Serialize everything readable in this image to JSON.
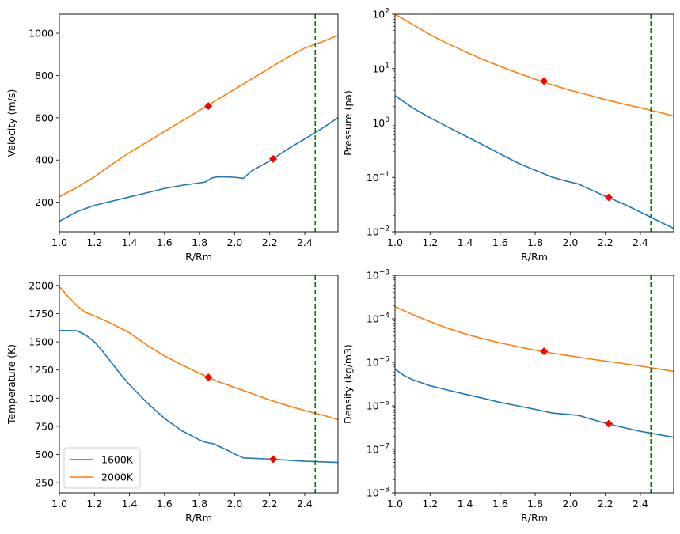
{
  "colors": {
    "series_1600": "#1f77b4",
    "series_2000": "#ff7f0e",
    "marker": "#ff0000",
    "vline": "#008000"
  },
  "legend": {
    "items": [
      {
        "label": "1600K",
        "color": "#1f77b4"
      },
      {
        "label": "2000K",
        "color": "#ff7f0e"
      }
    ],
    "location": "lower-left of temperature panel"
  },
  "chart_data": [
    {
      "type": "line",
      "panel": "top-left",
      "xlabel": "R/Rm",
      "ylabel": "Velocity (m/s)",
      "xlim": [
        1.0,
        2.59
      ],
      "ylim": [
        60,
        1090
      ],
      "yscale": "linear",
      "xticks": [
        1.0,
        1.2,
        1.4,
        1.6,
        1.8,
        2.0,
        2.2,
        2.4
      ],
      "xtick_labels": [
        "1.0",
        "1.2",
        "1.4",
        "1.6",
        "1.8",
        "2.0",
        "2.2",
        "2.4"
      ],
      "yticks": [
        200,
        400,
        600,
        800,
        1000
      ],
      "ytick_labels": [
        "200",
        "400",
        "600",
        "800",
        "1000"
      ],
      "vline": 2.46,
      "series": [
        {
          "name": "1600K",
          "x": [
            1.0,
            1.1,
            1.2,
            1.3,
            1.4,
            1.5,
            1.6,
            1.7,
            1.83,
            1.87,
            1.9,
            1.95,
            2.0,
            2.05,
            2.1,
            2.2,
            2.3,
            2.4,
            2.5,
            2.59
          ],
          "y": [
            110,
            155,
            185,
            205,
            225,
            245,
            265,
            280,
            295,
            315,
            320,
            320,
            318,
            313,
            350,
            395,
            450,
            500,
            550,
            600
          ]
        },
        {
          "name": "2000K",
          "x": [
            1.0,
            1.1,
            1.2,
            1.3,
            1.4,
            1.5,
            1.6,
            1.7,
            1.8,
            1.9,
            2.0,
            2.1,
            2.2,
            2.3,
            2.4,
            2.5,
            2.59
          ],
          "y": [
            225,
            270,
            320,
            380,
            435,
            485,
            535,
            585,
            635,
            685,
            735,
            785,
            835,
            885,
            930,
            960,
            990
          ]
        }
      ],
      "markers": [
        {
          "x": 1.85,
          "y": 655
        },
        {
          "x": 2.22,
          "y": 405
        }
      ]
    },
    {
      "type": "line",
      "panel": "top-right",
      "xlabel": "R/Rm",
      "ylabel": "Pressure (pa)",
      "xlim": [
        1.0,
        2.59
      ],
      "ylim": [
        0.01,
        100
      ],
      "yscale": "log",
      "xticks": [
        1.0,
        1.2,
        1.4,
        1.6,
        1.8,
        2.0,
        2.2,
        2.4
      ],
      "xtick_labels": [
        "1.0",
        "1.2",
        "1.4",
        "1.6",
        "1.8",
        "2.0",
        "2.2",
        "2.4"
      ],
      "yticks": [
        0.01,
        0.1,
        1,
        10,
        100
      ],
      "ytick_labels": [
        {
          "base": "10",
          "exp": "−2"
        },
        {
          "base": "10",
          "exp": "−1"
        },
        {
          "base": "10",
          "exp": "0"
        },
        {
          "base": "10",
          "exp": "1"
        },
        {
          "base": "10",
          "exp": "2"
        }
      ],
      "vline": 2.46,
      "series": [
        {
          "name": "1600K",
          "x": [
            1.0,
            1.1,
            1.2,
            1.3,
            1.4,
            1.5,
            1.6,
            1.7,
            1.8,
            1.9,
            2.0,
            2.05,
            2.1,
            2.2,
            2.3,
            2.4,
            2.5,
            2.59
          ],
          "y": [
            3.2,
            1.9,
            1.25,
            0.85,
            0.58,
            0.4,
            0.27,
            0.185,
            0.135,
            0.1,
            0.082,
            0.075,
            0.063,
            0.045,
            0.033,
            0.023,
            0.016,
            0.0115
          ]
        },
        {
          "name": "2000K",
          "x": [
            1.0,
            1.1,
            1.2,
            1.3,
            1.4,
            1.5,
            1.6,
            1.7,
            1.8,
            1.9,
            2.0,
            2.1,
            2.2,
            2.3,
            2.4,
            2.5,
            2.59
          ],
          "y": [
            100,
            65,
            42,
            29,
            20.5,
            14.8,
            11,
            8.3,
            6.4,
            5,
            4,
            3.3,
            2.7,
            2.25,
            1.9,
            1.6,
            1.35
          ]
        }
      ],
      "markers": [
        {
          "x": 1.85,
          "y": 5.9
        },
        {
          "x": 2.22,
          "y": 0.043
        }
      ]
    },
    {
      "type": "line",
      "panel": "bottom-left",
      "xlabel": "R/Rm",
      "ylabel": "Temperature (K)",
      "xlim": [
        1.0,
        2.59
      ],
      "ylim": [
        160,
        2090
      ],
      "yscale": "linear",
      "xticks": [
        1.0,
        1.2,
        1.4,
        1.6,
        1.8,
        2.0,
        2.2,
        2.4
      ],
      "xtick_labels": [
        "1.0",
        "1.2",
        "1.4",
        "1.6",
        "1.8",
        "2.0",
        "2.2",
        "2.4"
      ],
      "yticks": [
        250,
        500,
        750,
        1000,
        1250,
        1500,
        1750,
        2000
      ],
      "ytick_labels": [
        "250",
        "500",
        "750",
        "1000",
        "1250",
        "1500",
        "1750",
        "2000"
      ],
      "vline": 2.46,
      "series": [
        {
          "name": "1600K",
          "x": [
            1.0,
            1.05,
            1.1,
            1.15,
            1.2,
            1.25,
            1.3,
            1.35,
            1.4,
            1.5,
            1.6,
            1.7,
            1.8,
            1.83,
            1.88,
            1.9,
            1.95,
            2.0,
            2.05,
            2.2,
            2.3,
            2.4,
            2.5,
            2.59
          ],
          "y": [
            1600,
            1600,
            1598,
            1560,
            1500,
            1410,
            1310,
            1210,
            1120,
            960,
            820,
            710,
            630,
            610,
            595,
            580,
            545,
            505,
            470,
            460,
            450,
            440,
            435,
            430
          ]
        },
        {
          "name": "2000K",
          "x": [
            1.0,
            1.05,
            1.1,
            1.15,
            1.2,
            1.3,
            1.4,
            1.5,
            1.6,
            1.7,
            1.8,
            1.9,
            2.0,
            2.1,
            2.2,
            2.3,
            2.4,
            2.5,
            2.59
          ],
          "y": [
            1990,
            1900,
            1820,
            1760,
            1730,
            1660,
            1580,
            1470,
            1375,
            1295,
            1220,
            1150,
            1095,
            1040,
            985,
            935,
            890,
            850,
            810
          ]
        }
      ],
      "markers": [
        {
          "x": 1.85,
          "y": 1185
        },
        {
          "x": 2.22,
          "y": 458
        }
      ]
    },
    {
      "type": "line",
      "panel": "bottom-right",
      "xlabel": "R/Rm",
      "ylabel": "Density (kg/m3)",
      "xlim": [
        1.0,
        2.59
      ],
      "ylim": [
        1e-08,
        0.001
      ],
      "yscale": "log",
      "xticks": [
        1.0,
        1.2,
        1.4,
        1.6,
        1.8,
        2.0,
        2.2,
        2.4
      ],
      "xtick_labels": [
        "1.0",
        "1.2",
        "1.4",
        "1.6",
        "1.8",
        "2.0",
        "2.2",
        "2.4"
      ],
      "yticks": [
        1e-08,
        1e-07,
        1e-06,
        1e-05,
        0.0001,
        0.001
      ],
      "ytick_labels": [
        {
          "base": "10",
          "exp": "−8"
        },
        {
          "base": "10",
          "exp": "−7"
        },
        {
          "base": "10",
          "exp": "−6"
        },
        {
          "base": "10",
          "exp": "−5"
        },
        {
          "base": "10",
          "exp": "−4"
        },
        {
          "base": "10",
          "exp": "−3"
        }
      ],
      "vline": 2.46,
      "series": [
        {
          "name": "1600K",
          "x": [
            1.0,
            1.05,
            1.1,
            1.2,
            1.3,
            1.4,
            1.5,
            1.6,
            1.7,
            1.8,
            1.85,
            1.9,
            2.0,
            2.05,
            2.1,
            2.2,
            2.3,
            2.4,
            2.5,
            2.59
          ],
          "y": [
            7e-06,
            5e-06,
            4e-06,
            2.9e-06,
            2.3e-06,
            1.85e-06,
            1.5e-06,
            1.2e-06,
            1e-06,
            8.3e-07,
            7.5e-07,
            6.8e-07,
            6.3e-07,
            6e-07,
            5.2e-07,
            4e-07,
            3.2e-07,
            2.6e-07,
            2.2e-07,
            1.9e-07
          ]
        },
        {
          "name": "2000K",
          "x": [
            1.0,
            1.1,
            1.2,
            1.3,
            1.4,
            1.5,
            1.6,
            1.7,
            1.8,
            1.9,
            2.0,
            2.1,
            2.2,
            2.3,
            2.4,
            2.5,
            2.59
          ],
          "y": [
            0.00019,
            0.000125,
            8.6e-05,
            6.1e-05,
            4.5e-05,
            3.5e-05,
            2.8e-05,
            2.3e-05,
            1.9e-05,
            1.62e-05,
            1.4e-05,
            1.22e-05,
            1.07e-05,
            9.4e-06,
            8.2e-06,
            7.1e-06,
            6.2e-06
          ]
        }
      ],
      "markers": [
        {
          "x": 1.85,
          "y": 1.8e-05
        },
        {
          "x": 2.22,
          "y": 3.9e-07
        }
      ]
    }
  ]
}
